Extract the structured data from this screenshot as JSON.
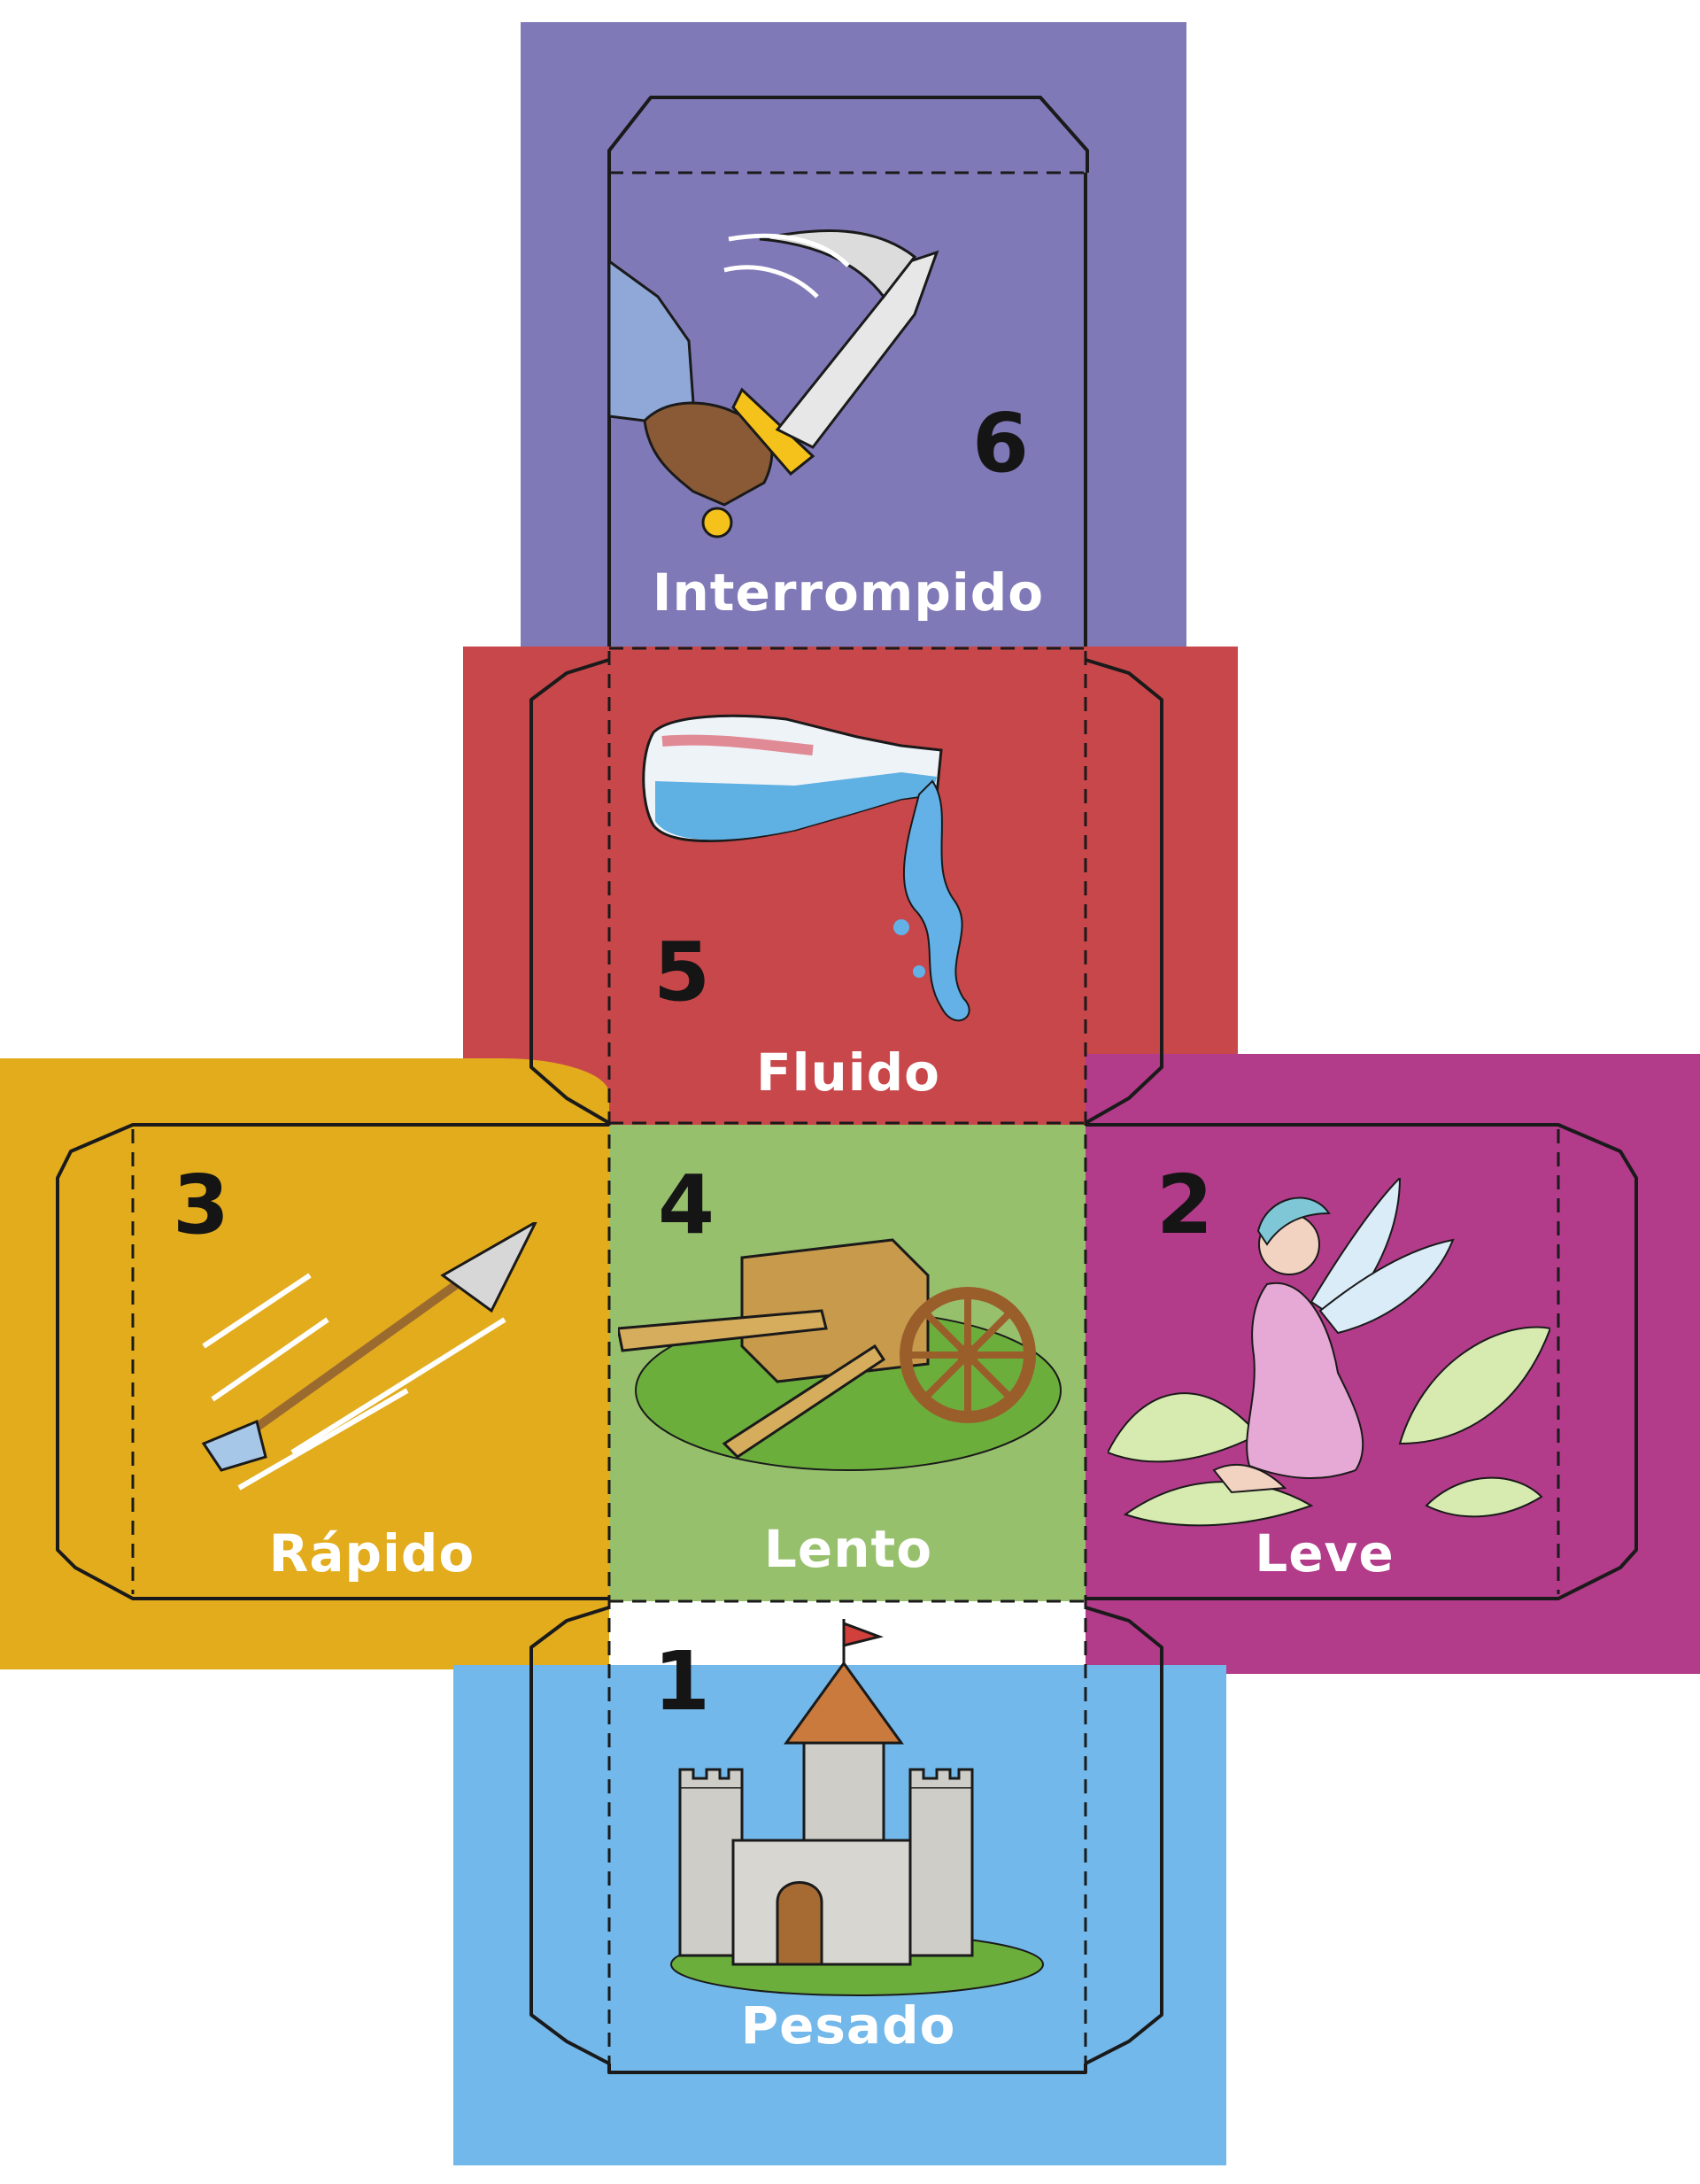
{
  "colors": {
    "purple": "#8079b7",
    "red": "#c8474a",
    "yellow": "#e2ac1d",
    "green": "#97c06d",
    "magenta": "#b23b8a",
    "blue": "#73b8ea",
    "outline": "#1a1a1a",
    "text_light": "#ffffff",
    "number_dark": "#151515"
  },
  "faces": [
    {
      "number": "6",
      "word": "Interrompido",
      "icon": "sword-strike-icon",
      "color": "purple"
    },
    {
      "number": "5",
      "word": "Fluido",
      "icon": "pouring-bottle-icon",
      "color": "red"
    },
    {
      "number": "3",
      "word": "Rápido",
      "icon": "flying-arrow-icon",
      "color": "yellow"
    },
    {
      "number": "4",
      "word": "Lento",
      "icon": "wooden-cart-icon",
      "color": "green"
    },
    {
      "number": "2",
      "word": "Leve",
      "icon": "fairy-icon",
      "color": "magenta"
    },
    {
      "number": "1",
      "word": "Pesado",
      "icon": "castle-icon",
      "color": "blue"
    }
  ]
}
